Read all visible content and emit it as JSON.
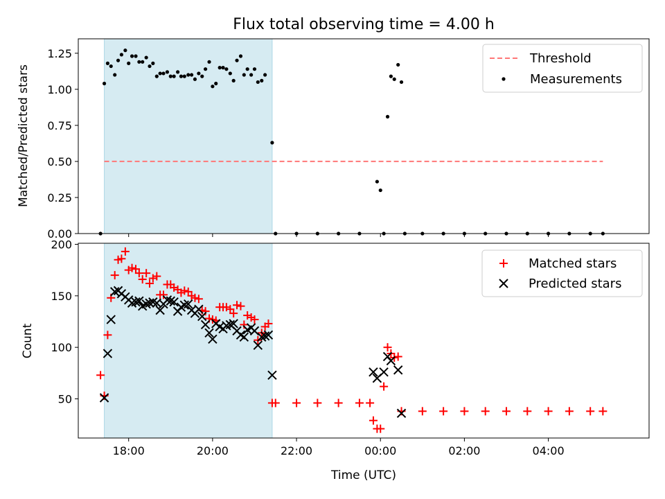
{
  "chart_data": [
    {
      "type": "scatter",
      "title": "Flux total observing time = 4.00 h",
      "xlabel": "",
      "ylabel": "Matched/Predicted stars",
      "ylim": [
        0,
        1.35
      ],
      "xlim_hours": [
        16.8,
        30.4
      ],
      "yticks": [
        "0.00",
        "0.25",
        "0.50",
        "0.75",
        "1.00",
        "1.25"
      ],
      "legend_position": "top-right",
      "observing_window_hours": [
        17.42,
        21.42
      ],
      "threshold": {
        "name": "Threshold",
        "value": 0.5,
        "x_range_hours": [
          17.42,
          29.3
        ],
        "color": "#ff7777"
      },
      "series": [
        {
          "name": "Measurements",
          "color": "#000000",
          "marker": "dot",
          "points": [
            [
              17.33,
              0.0
            ],
            [
              17.42,
              1.04
            ],
            [
              17.5,
              1.18
            ],
            [
              17.58,
              1.16
            ],
            [
              17.67,
              1.1
            ],
            [
              17.75,
              1.2
            ],
            [
              17.83,
              1.24
            ],
            [
              17.92,
              1.27
            ],
            [
              18.0,
              1.18
            ],
            [
              18.08,
              1.23
            ],
            [
              18.17,
              1.23
            ],
            [
              18.25,
              1.19
            ],
            [
              18.33,
              1.19
            ],
            [
              18.42,
              1.22
            ],
            [
              18.5,
              1.16
            ],
            [
              18.58,
              1.18
            ],
            [
              18.67,
              1.09
            ],
            [
              18.75,
              1.11
            ],
            [
              18.83,
              1.11
            ],
            [
              18.92,
              1.12
            ],
            [
              19.0,
              1.09
            ],
            [
              19.08,
              1.09
            ],
            [
              19.17,
              1.12
            ],
            [
              19.25,
              1.09
            ],
            [
              19.33,
              1.09
            ],
            [
              19.42,
              1.1
            ],
            [
              19.5,
              1.1
            ],
            [
              19.58,
              1.07
            ],
            [
              19.67,
              1.11
            ],
            [
              19.75,
              1.09
            ],
            [
              19.83,
              1.14
            ],
            [
              19.92,
              1.19
            ],
            [
              20.0,
              1.02
            ],
            [
              20.08,
              1.04
            ],
            [
              20.17,
              1.15
            ],
            [
              20.25,
              1.15
            ],
            [
              20.33,
              1.14
            ],
            [
              20.42,
              1.11
            ],
            [
              20.5,
              1.06
            ],
            [
              20.58,
              1.2
            ],
            [
              20.67,
              1.23
            ],
            [
              20.75,
              1.1
            ],
            [
              20.83,
              1.14
            ],
            [
              20.92,
              1.1
            ],
            [
              21.0,
              1.14
            ],
            [
              21.08,
              1.05
            ],
            [
              21.17,
              1.06
            ],
            [
              21.25,
              1.1
            ],
            [
              21.42,
              0.63
            ],
            [
              21.5,
              0.0
            ],
            [
              22.0,
              0.0
            ],
            [
              22.5,
              0.0
            ],
            [
              23.0,
              0.0
            ],
            [
              23.5,
              0.0
            ],
            [
              23.92,
              0.36
            ],
            [
              24.0,
              0.3
            ],
            [
              24.08,
              0.0
            ],
            [
              24.17,
              0.81
            ],
            [
              24.25,
              1.09
            ],
            [
              24.33,
              1.07
            ],
            [
              24.42,
              1.17
            ],
            [
              24.5,
              1.05
            ],
            [
              24.58,
              0.0
            ],
            [
              25.0,
              0.0
            ],
            [
              25.5,
              0.0
            ],
            [
              26.0,
              0.0
            ],
            [
              26.5,
              0.0
            ],
            [
              27.0,
              0.0
            ],
            [
              27.5,
              0.0
            ],
            [
              28.0,
              0.0
            ],
            [
              28.5,
              0.0
            ],
            [
              29.0,
              0.0
            ],
            [
              29.3,
              0.0
            ]
          ]
        }
      ]
    },
    {
      "type": "scatter",
      "title": "",
      "xlabel": "Time (UTC)",
      "ylabel": "Count",
      "ylim": [
        12,
        201
      ],
      "xlim_hours": [
        16.8,
        30.4
      ],
      "yticks": [
        "50",
        "100",
        "150",
        "200"
      ],
      "xticks": [
        "18:00",
        "20:00",
        "22:00",
        "00:00",
        "02:00",
        "04:00"
      ],
      "legend_position": "top-right",
      "observing_window_hours": [
        17.42,
        21.42
      ],
      "series": [
        {
          "name": "Matched stars",
          "color": "#ff0000",
          "marker": "plus",
          "points": [
            [
              17.33,
              73
            ],
            [
              17.42,
              53
            ],
            [
              17.5,
              112
            ],
            [
              17.58,
              148
            ],
            [
              17.67,
              170
            ],
            [
              17.75,
              185
            ],
            [
              17.83,
              186
            ],
            [
              17.92,
              193
            ],
            [
              18.0,
              175
            ],
            [
              18.08,
              177
            ],
            [
              18.17,
              176
            ],
            [
              18.25,
              172
            ],
            [
              18.33,
              166
            ],
            [
              18.42,
              172
            ],
            [
              18.5,
              162
            ],
            [
              18.58,
              167
            ],
            [
              18.67,
              169
            ],
            [
              18.75,
              151
            ],
            [
              18.83,
              151
            ],
            [
              18.92,
              161
            ],
            [
              19.0,
              161
            ],
            [
              19.08,
              158
            ],
            [
              19.17,
              156
            ],
            [
              19.25,
              153
            ],
            [
              19.33,
              155
            ],
            [
              19.42,
              154
            ],
            [
              19.5,
              150
            ],
            [
              19.58,
              148
            ],
            [
              19.67,
              147
            ],
            [
              19.75,
              136
            ],
            [
              19.83,
              135
            ],
            [
              19.92,
              128
            ],
            [
              20.0,
              127
            ],
            [
              20.08,
              126
            ],
            [
              20.17,
              139
            ],
            [
              20.25,
              139
            ],
            [
              20.33,
              139
            ],
            [
              20.42,
              137
            ],
            [
              20.5,
              133
            ],
            [
              20.58,
              141
            ],
            [
              20.67,
              140
            ],
            [
              20.75,
              122
            ],
            [
              20.83,
              131
            ],
            [
              20.92,
              129
            ],
            [
              21.0,
              127
            ],
            [
              21.08,
              107
            ],
            [
              21.17,
              114
            ],
            [
              21.25,
              120
            ],
            [
              21.33,
              123
            ],
            [
              21.42,
              46
            ],
            [
              21.5,
              46
            ],
            [
              22.0,
              46
            ],
            [
              22.5,
              46
            ],
            [
              23.0,
              46
            ],
            [
              23.5,
              46
            ],
            [
              23.75,
              46
            ],
            [
              23.83,
              29
            ],
            [
              23.92,
              21
            ],
            [
              24.0,
              21
            ],
            [
              24.08,
              62
            ],
            [
              24.17,
              100
            ],
            [
              24.25,
              94
            ],
            [
              24.33,
              90
            ],
            [
              24.42,
              91
            ],
            [
              24.5,
              38
            ],
            [
              25.0,
              38
            ],
            [
              25.5,
              38
            ],
            [
              26.0,
              38
            ],
            [
              26.5,
              38
            ],
            [
              27.0,
              38
            ],
            [
              27.5,
              38
            ],
            [
              28.0,
              38
            ],
            [
              28.5,
              38
            ],
            [
              29.0,
              38
            ],
            [
              29.3,
              38
            ]
          ]
        },
        {
          "name": "Predicted stars",
          "color": "#000000",
          "marker": "x",
          "points": [
            [
              17.42,
              51
            ],
            [
              17.5,
              94
            ],
            [
              17.58,
              127
            ],
            [
              17.67,
              154
            ],
            [
              17.75,
              155
            ],
            [
              17.83,
              152
            ],
            [
              17.92,
              149
            ],
            [
              18.0,
              146
            ],
            [
              18.08,
              143
            ],
            [
              18.17,
              144
            ],
            [
              18.25,
              145
            ],
            [
              18.33,
              140
            ],
            [
              18.42,
              142
            ],
            [
              18.5,
              143
            ],
            [
              18.58,
              144
            ],
            [
              18.67,
              143
            ],
            [
              18.75,
              136
            ],
            [
              18.83,
              142
            ],
            [
              18.92,
              146
            ],
            [
              19.0,
              145
            ],
            [
              19.08,
              144
            ],
            [
              19.17,
              135
            ],
            [
              19.25,
              139
            ],
            [
              19.33,
              141
            ],
            [
              19.42,
              142
            ],
            [
              19.5,
              136
            ],
            [
              19.58,
              133
            ],
            [
              19.67,
              137
            ],
            [
              19.75,
              130
            ],
            [
              19.83,
              122
            ],
            [
              19.92,
              114
            ],
            [
              20.0,
              108
            ],
            [
              20.08,
              123
            ],
            [
              20.17,
              120
            ],
            [
              20.25,
              118
            ],
            [
              20.33,
              121
            ],
            [
              20.42,
              122
            ],
            [
              20.5,
              123
            ],
            [
              20.58,
              116
            ],
            [
              20.67,
              112
            ],
            [
              20.75,
              110
            ],
            [
              20.83,
              117
            ],
            [
              20.92,
              119
            ],
            [
              21.0,
              116
            ],
            [
              21.08,
              102
            ],
            [
              21.17,
              110
            ],
            [
              21.25,
              111
            ],
            [
              21.33,
              112
            ],
            [
              21.42,
              73
            ],
            [
              23.83,
              76
            ],
            [
              23.92,
              70
            ],
            [
              24.08,
              76
            ],
            [
              24.17,
              91
            ],
            [
              24.25,
              87
            ],
            [
              24.42,
              78
            ],
            [
              24.5,
              36
            ]
          ]
        }
      ]
    }
  ]
}
